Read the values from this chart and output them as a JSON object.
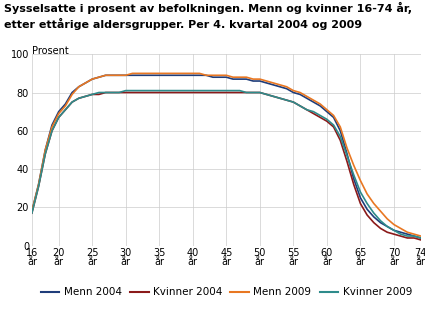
{
  "title_line1": "Sysselsatte i prosent av befolkningen. Menn og kvinner 16-74 år,",
  "title_line2": "etter ettårige aldersgrupper. Per 4. kvartal 2004 og 2009",
  "ylabel": "Prosent",
  "ages": [
    16,
    17,
    18,
    19,
    20,
    21,
    22,
    23,
    24,
    25,
    26,
    27,
    28,
    29,
    30,
    31,
    32,
    33,
    34,
    35,
    36,
    37,
    38,
    39,
    40,
    41,
    42,
    43,
    44,
    45,
    46,
    47,
    48,
    49,
    50,
    51,
    52,
    53,
    54,
    55,
    56,
    57,
    58,
    59,
    60,
    61,
    62,
    63,
    64,
    65,
    66,
    67,
    68,
    69,
    70,
    71,
    72,
    73,
    74
  ],
  "menn2004": [
    18,
    32,
    50,
    63,
    70,
    74,
    80,
    83,
    85,
    87,
    88,
    89,
    89,
    89,
    89,
    89,
    89,
    89,
    89,
    89,
    89,
    89,
    89,
    89,
    89,
    89,
    89,
    88,
    88,
    88,
    87,
    87,
    87,
    86,
    86,
    85,
    84,
    83,
    82,
    80,
    79,
    77,
    75,
    73,
    70,
    67,
    60,
    48,
    35,
    25,
    19,
    15,
    12,
    10,
    8,
    7,
    6,
    5,
    4
  ],
  "kvinner2004": [
    17,
    31,
    48,
    60,
    67,
    71,
    75,
    77,
    78,
    79,
    79,
    80,
    80,
    80,
    80,
    80,
    80,
    80,
    80,
    80,
    80,
    80,
    80,
    80,
    80,
    80,
    80,
    80,
    80,
    80,
    80,
    80,
    80,
    80,
    80,
    79,
    78,
    77,
    76,
    75,
    73,
    71,
    69,
    67,
    65,
    62,
    55,
    44,
    32,
    22,
    16,
    12,
    9,
    7,
    6,
    5,
    4,
    4,
    3
  ],
  "menn2009": [
    18,
    32,
    50,
    62,
    69,
    73,
    79,
    83,
    85,
    87,
    88,
    89,
    89,
    89,
    89,
    90,
    90,
    90,
    90,
    90,
    90,
    90,
    90,
    90,
    90,
    90,
    89,
    89,
    89,
    89,
    88,
    88,
    88,
    87,
    87,
    86,
    85,
    84,
    83,
    81,
    80,
    78,
    76,
    74,
    71,
    68,
    62,
    51,
    42,
    34,
    27,
    22,
    18,
    14,
    11,
    9,
    7,
    6,
    5
  ],
  "kvinner2009": [
    17,
    31,
    48,
    60,
    67,
    71,
    75,
    77,
    78,
    79,
    80,
    80,
    80,
    80,
    81,
    81,
    81,
    81,
    81,
    81,
    81,
    81,
    81,
    81,
    81,
    81,
    81,
    81,
    81,
    81,
    81,
    81,
    80,
    80,
    80,
    79,
    78,
    77,
    76,
    75,
    73,
    71,
    70,
    68,
    66,
    63,
    57,
    47,
    37,
    28,
    22,
    17,
    13,
    10,
    8,
    6,
    5,
    5,
    4
  ],
  "menn2004_color": "#1f3d7a",
  "kvinner2004_color": "#8b1a1a",
  "menn2009_color": "#e87722",
  "kvinner2009_color": "#2e8b8b",
  "xtick_positions": [
    16,
    20,
    25,
    30,
    35,
    40,
    45,
    50,
    55,
    60,
    65,
    70,
    74
  ],
  "xtick_labels": [
    "16\når",
    "20\når",
    "25\når",
    "30\når",
    "35\når",
    "40\når",
    "45\når",
    "50\når",
    "55\når",
    "60\når",
    "65\når",
    "70\når",
    "74\når"
  ],
  "ylim": [
    0,
    100
  ],
  "ytick_positions": [
    0,
    20,
    40,
    60,
    80,
    100
  ],
  "legend_labels": [
    "Menn 2004",
    "Kvinner 2004",
    "Menn 2009",
    "Kvinner 2009"
  ],
  "title_fontsize": 8,
  "axis_fontsize": 7,
  "legend_fontsize": 7.5
}
